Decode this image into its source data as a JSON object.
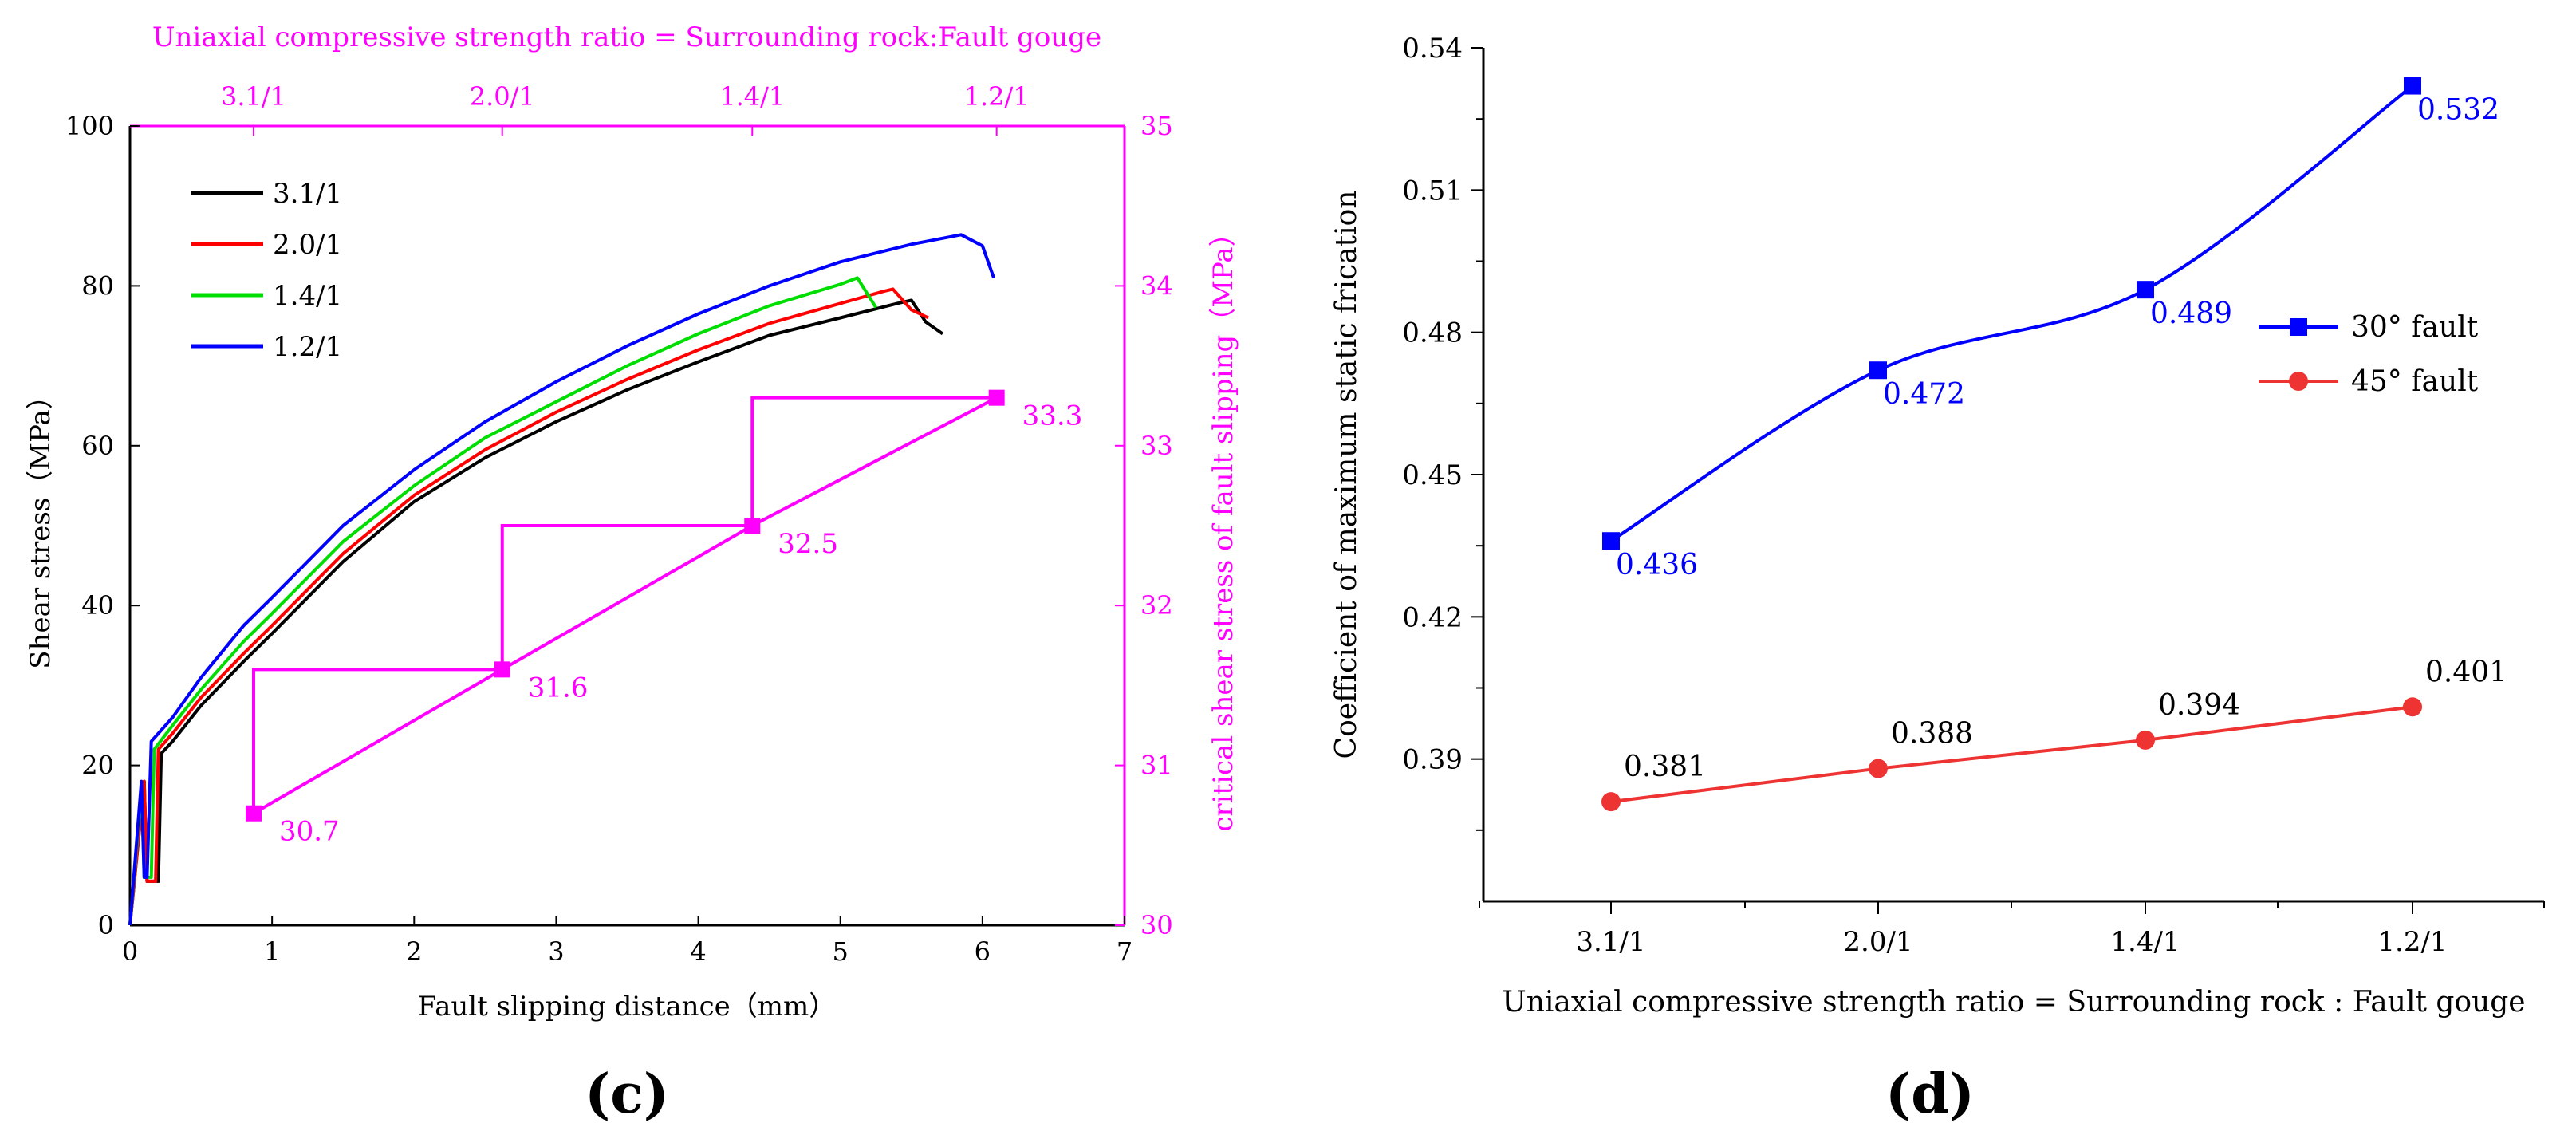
{
  "colors": {
    "axis": "#000000",
    "magenta": "#ff00ff",
    "s31": "#000000",
    "s20": "#ff0000",
    "s14": "#00dd00",
    "s12": "#0000ff",
    "blue": "#0000ff",
    "red": "#ee3333"
  },
  "chart_data": [
    {
      "panel": "(c)",
      "type": "line",
      "xlabel": "Fault slipping distance（mm）",
      "ylabel": "Shear stress（MPa）",
      "y2label": "critical shear stress of fault slipping（MPa）",
      "top_axis_label": "Uniaxial compressive strength ratio = Surrounding rock:Fault gouge",
      "xlim": [
        0,
        7
      ],
      "ylim": [
        0,
        100
      ],
      "y2lim": [
        30,
        35
      ],
      "x_ticks": [
        "0",
        "1",
        "2",
        "3",
        "4",
        "5",
        "6",
        "7"
      ],
      "y_ticks": [
        "0",
        "20",
        "40",
        "60",
        "80",
        "100"
      ],
      "y2_ticks": [
        "30",
        "31",
        "32",
        "33",
        "34",
        "35"
      ],
      "top_ticks": [
        {
          "label": "3.1/1",
          "x": 0.87
        },
        {
          "label": "2.0/1",
          "x": 2.62
        },
        {
          "label": "1.4/1",
          "x": 4.38
        },
        {
          "label": "1.2/1",
          "x": 6.1
        }
      ],
      "legend": [
        "3.1/1",
        "2.0/1",
        "1.4/1",
        "1.2/1"
      ],
      "series": [
        {
          "name": "3.1/1",
          "color_key": "s31",
          "points": [
            [
              0,
              0
            ],
            [
              0.1,
              18
            ],
            [
              0.12,
              5.5
            ],
            [
              0.2,
              5.5
            ],
            [
              0.22,
              21.5
            ],
            [
              0.3,
              23
            ],
            [
              0.5,
              27.5
            ],
            [
              0.8,
              33
            ],
            [
              1.0,
              36.5
            ],
            [
              1.5,
              45.5
            ],
            [
              2.0,
              53
            ],
            [
              2.5,
              58.5
            ],
            [
              3.0,
              63
            ],
            [
              3.5,
              67
            ],
            [
              4.0,
              70.5
            ],
            [
              4.5,
              73.8
            ],
            [
              5.0,
              76
            ],
            [
              5.4,
              77.8
            ],
            [
              5.5,
              78.2
            ],
            [
              5.6,
              75.5
            ],
            [
              5.72,
              74
            ]
          ]
        },
        {
          "name": "2.0/1",
          "color_key": "s20",
          "points": [
            [
              0,
              0
            ],
            [
              0.1,
              18
            ],
            [
              0.12,
              5.5
            ],
            [
              0.18,
              5.5
            ],
            [
              0.2,
              22
            ],
            [
              0.3,
              24
            ],
            [
              0.5,
              28.5
            ],
            [
              0.8,
              34
            ],
            [
              1.0,
              37.5
            ],
            [
              1.5,
              46.5
            ],
            [
              2.0,
              53.8
            ],
            [
              2.5,
              59.5
            ],
            [
              3.0,
              64.2
            ],
            [
              3.5,
              68.3
            ],
            [
              4.0,
              72
            ],
            [
              4.5,
              75.3
            ],
            [
              5.0,
              77.8
            ],
            [
              5.3,
              79.3
            ],
            [
              5.37,
              79.6
            ],
            [
              5.5,
              77
            ],
            [
              5.62,
              76
            ]
          ]
        },
        {
          "name": "1.4/1",
          "color_key": "s14",
          "points": [
            [
              0,
              0
            ],
            [
              0.08,
              17
            ],
            [
              0.1,
              6
            ],
            [
              0.15,
              6
            ],
            [
              0.17,
              22
            ],
            [
              0.3,
              25
            ],
            [
              0.5,
              29.5
            ],
            [
              0.8,
              35.5
            ],
            [
              1.0,
              39
            ],
            [
              1.5,
              48
            ],
            [
              2.0,
              55
            ],
            [
              2.5,
              61
            ],
            [
              3.0,
              65.5
            ],
            [
              3.5,
              70
            ],
            [
              4.0,
              74
            ],
            [
              4.5,
              77.5
            ],
            [
              5.0,
              80.2
            ],
            [
              5.12,
              81
            ],
            [
              5.25,
              77.3
            ]
          ]
        },
        {
          "name": "1.2/1",
          "color_key": "s12",
          "points": [
            [
              0,
              0
            ],
            [
              0.08,
              18
            ],
            [
              0.1,
              6
            ],
            [
              0.12,
              6
            ],
            [
              0.15,
              23
            ],
            [
              0.3,
              26
            ],
            [
              0.5,
              31
            ],
            [
              0.8,
              37.5
            ],
            [
              1.0,
              41
            ],
            [
              1.5,
              50
            ],
            [
              2.0,
              57
            ],
            [
              2.5,
              63
            ],
            [
              3.0,
              68
            ],
            [
              3.5,
              72.5
            ],
            [
              4.0,
              76.5
            ],
            [
              4.5,
              80
            ],
            [
              5.0,
              83
            ],
            [
              5.5,
              85.2
            ],
            [
              5.85,
              86.4
            ],
            [
              6.0,
              85
            ],
            [
              6.08,
              81
            ]
          ]
        }
      ],
      "critical": {
        "points": [
          {
            "x": 0.87,
            "y2": 30.7,
            "label": "30.7"
          },
          {
            "x": 2.62,
            "y2": 31.6,
            "label": "31.6"
          },
          {
            "x": 4.38,
            "y2": 32.5,
            "label": "32.5"
          },
          {
            "x": 6.1,
            "y2": 33.3,
            "label": "33.3"
          }
        ],
        "steps": [
          [
            [
              0.87,
              30.7
            ],
            [
              0.87,
              31.6
            ],
            [
              2.62,
              31.6
            ]
          ],
          [
            [
              2.62,
              31.6
            ],
            [
              2.62,
              32.5
            ],
            [
              4.38,
              32.5
            ]
          ],
          [
            [
              4.38,
              32.5
            ],
            [
              4.38,
              33.3
            ],
            [
              6.1,
              33.3
            ]
          ]
        ]
      },
      "caption": "(c)"
    },
    {
      "panel": "(d)",
      "type": "line",
      "xlabel": "Uniaxial compressive strength ratio = Surrounding rock : Fault gouge",
      "ylabel": "Coefficient of maximum static frication",
      "categories": [
        "3.1/1",
        "2.0/1",
        "1.4/1",
        "1.2/1"
      ],
      "ylim": [
        0.36,
        0.54
      ],
      "y_ticks": [
        "0.39",
        "0.42",
        "0.45",
        "0.48",
        "0.51",
        "0.54"
      ],
      "series": [
        {
          "name": "30° fault",
          "color_key": "blue",
          "marker": "square",
          "values": [
            0.436,
            0.472,
            0.489,
            0.532
          ],
          "labels": [
            "0.436",
            "0.472",
            "0.489",
            "0.532"
          ],
          "label_color_key": "blue"
        },
        {
          "name": "45° fault",
          "color_key": "red",
          "marker": "circle",
          "values": [
            0.381,
            0.388,
            0.394,
            0.401
          ],
          "labels": [
            "0.381",
            "0.388",
            "0.394",
            "0.401"
          ],
          "label_color_key": "axis"
        }
      ],
      "legend": [
        "30° fault",
        "45° fault"
      ],
      "caption": "(d)"
    }
  ]
}
